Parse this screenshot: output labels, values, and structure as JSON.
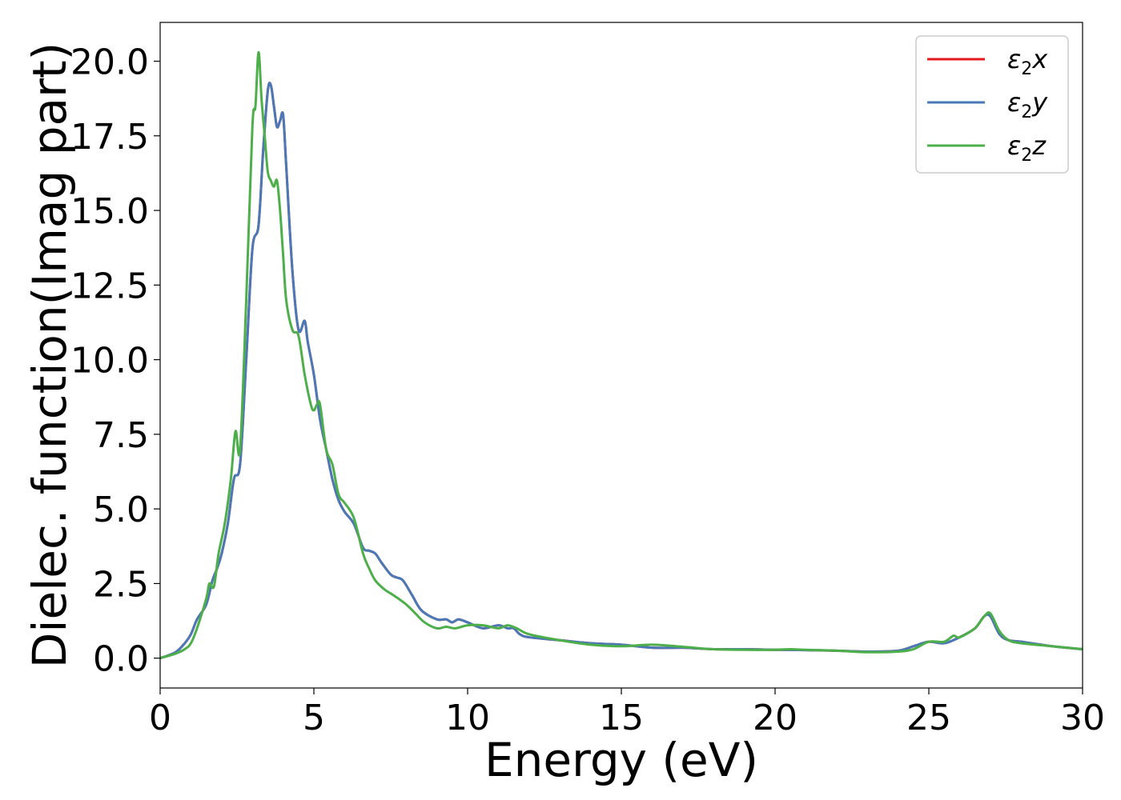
{
  "chart_data": {
    "type": "line",
    "title": "",
    "xlabel": "Energy (eV)",
    "ylabel": "Dielec. function(Imag part)",
    "xlim": [
      0,
      30
    ],
    "ylim": [
      -1.0,
      21.3
    ],
    "xticks": [
      0,
      5,
      10,
      15,
      20,
      25,
      30
    ],
    "xtick_labels": [
      "0",
      "5",
      "10",
      "15",
      "20",
      "25",
      "30"
    ],
    "yticks": [
      0,
      2.5,
      5,
      7.5,
      10,
      12.5,
      15,
      17.5,
      20
    ],
    "ytick_labels": [
      "0.0",
      "2.5",
      "5.0",
      "7.5",
      "10.0",
      "12.5",
      "15.0",
      "17.5",
      "20.0"
    ],
    "grid": false,
    "legend_position": "top-right",
    "series": [
      {
        "name": "ε₂x",
        "legend_base": "ε",
        "legend_sub": "2",
        "legend_suffix": "x",
        "color": "#e41a1c",
        "x": [
          0,
          0.5,
          0.8,
          1.0,
          1.2,
          1.5,
          1.7,
          1.85,
          2.0,
          2.2,
          2.4,
          2.6,
          2.8,
          3.0,
          3.2,
          3.35,
          3.5,
          3.6,
          3.7,
          3.8,
          3.9,
          4.0,
          4.1,
          4.3,
          4.5,
          4.7,
          4.8,
          5.0,
          5.2,
          5.4,
          5.6,
          5.8,
          6.0,
          6.3,
          6.6,
          6.8,
          7.0,
          7.2,
          7.5,
          7.7,
          7.9,
          8.2,
          8.5,
          9.0,
          9.3,
          9.5,
          9.7,
          10.0,
          10.5,
          11.0,
          11.3,
          11.5,
          11.7,
          12.0,
          13.0,
          14.0,
          15.0,
          16.0,
          17.0,
          18.0,
          19.0,
          20.0,
          21.0,
          22.0,
          23.0,
          24.0,
          24.5,
          25.0,
          25.5,
          26.0,
          26.5,
          26.8,
          27.0,
          27.3,
          27.6,
          28.0,
          29.0,
          30.0
        ],
        "y": [
          0,
          0.2,
          0.5,
          0.8,
          1.3,
          1.8,
          2.6,
          3.0,
          3.5,
          4.5,
          6.0,
          6.5,
          10.0,
          13.7,
          14.5,
          17.0,
          19.0,
          19.2,
          18.5,
          17.8,
          18.0,
          18.2,
          16.5,
          13.0,
          11.0,
          11.3,
          10.6,
          9.5,
          8.0,
          7.0,
          6.0,
          5.3,
          4.9,
          4.5,
          3.7,
          3.6,
          3.5,
          3.2,
          2.8,
          2.7,
          2.6,
          2.1,
          1.6,
          1.3,
          1.3,
          1.2,
          1.3,
          1.2,
          1.0,
          1.1,
          1.0,
          1.0,
          0.8,
          0.7,
          0.6,
          0.5,
          0.45,
          0.35,
          0.35,
          0.3,
          0.3,
          0.28,
          0.27,
          0.25,
          0.22,
          0.25,
          0.4,
          0.55,
          0.5,
          0.7,
          1.0,
          1.4,
          1.4,
          0.8,
          0.6,
          0.55,
          0.4,
          0.3
        ]
      },
      {
        "name": "ε₂y",
        "legend_base": "ε",
        "legend_sub": "2",
        "legend_suffix": "y",
        "color": "#4a79b8",
        "x": [
          0,
          0.5,
          0.8,
          1.0,
          1.2,
          1.5,
          1.7,
          1.85,
          2.0,
          2.2,
          2.4,
          2.6,
          2.8,
          3.0,
          3.2,
          3.35,
          3.5,
          3.6,
          3.7,
          3.8,
          3.9,
          4.0,
          4.1,
          4.3,
          4.5,
          4.7,
          4.8,
          5.0,
          5.2,
          5.4,
          5.6,
          5.8,
          6.0,
          6.3,
          6.6,
          6.8,
          7.0,
          7.2,
          7.5,
          7.7,
          7.9,
          8.2,
          8.5,
          9.0,
          9.3,
          9.5,
          9.7,
          10.0,
          10.5,
          11.0,
          11.3,
          11.5,
          11.7,
          12.0,
          13.0,
          14.0,
          15.0,
          16.0,
          17.0,
          18.0,
          19.0,
          20.0,
          21.0,
          22.0,
          23.0,
          24.0,
          24.5,
          25.0,
          25.5,
          26.0,
          26.5,
          26.8,
          27.0,
          27.3,
          27.6,
          28.0,
          29.0,
          30.0
        ],
        "y": [
          0,
          0.2,
          0.5,
          0.8,
          1.3,
          1.8,
          2.6,
          3.0,
          3.5,
          4.5,
          6.0,
          6.5,
          10.0,
          13.7,
          14.5,
          17.0,
          19.0,
          19.2,
          18.5,
          17.8,
          18.0,
          18.2,
          16.5,
          13.0,
          11.0,
          11.3,
          10.6,
          9.5,
          8.0,
          7.0,
          6.0,
          5.3,
          4.9,
          4.5,
          3.7,
          3.6,
          3.5,
          3.2,
          2.8,
          2.7,
          2.6,
          2.1,
          1.6,
          1.3,
          1.3,
          1.2,
          1.3,
          1.2,
          1.0,
          1.1,
          1.0,
          1.0,
          0.8,
          0.7,
          0.6,
          0.5,
          0.45,
          0.35,
          0.35,
          0.3,
          0.3,
          0.28,
          0.27,
          0.25,
          0.22,
          0.25,
          0.4,
          0.55,
          0.5,
          0.7,
          1.0,
          1.4,
          1.4,
          0.8,
          0.6,
          0.55,
          0.4,
          0.3
        ]
      },
      {
        "name": "ε₂z",
        "legend_base": "ε",
        "legend_sub": "2",
        "legend_suffix": "z",
        "color": "#4daf4a",
        "x": [
          0,
          0.5,
          0.8,
          1.0,
          1.2,
          1.5,
          1.6,
          1.75,
          1.9,
          2.1,
          2.3,
          2.45,
          2.6,
          2.8,
          3.0,
          3.1,
          3.2,
          3.3,
          3.4,
          3.5,
          3.6,
          3.7,
          3.8,
          3.9,
          4.0,
          4.1,
          4.3,
          4.5,
          4.7,
          4.9,
          5.0,
          5.1,
          5.2,
          5.4,
          5.6,
          5.8,
          6.0,
          6.3,
          6.6,
          6.8,
          7.0,
          7.3,
          7.6,
          8.0,
          8.3,
          8.6,
          9.0,
          9.3,
          9.6,
          10.0,
          10.5,
          11.0,
          11.3,
          11.6,
          12.0,
          13.0,
          14.0,
          15.0,
          16.0,
          17.0,
          18.0,
          19.0,
          20.0,
          20.5,
          21.0,
          22.0,
          23.0,
          24.0,
          24.5,
          25.0,
          25.5,
          25.8,
          26.0,
          26.5,
          26.8,
          27.0,
          27.3,
          27.6,
          28.0,
          29.0,
          30.0
        ],
        "y": [
          0,
          0.15,
          0.3,
          0.5,
          1.0,
          2.0,
          2.5,
          2.4,
          3.5,
          4.5,
          6.0,
          7.6,
          7.0,
          12.0,
          17.8,
          18.5,
          20.3,
          18.7,
          17.5,
          16.3,
          16.0,
          15.8,
          16.0,
          15.0,
          13.5,
          12.0,
          11.0,
          10.8,
          9.5,
          8.5,
          8.3,
          8.5,
          8.5,
          7.0,
          6.5,
          5.5,
          5.2,
          4.7,
          3.5,
          3.0,
          2.6,
          2.3,
          2.1,
          1.8,
          1.5,
          1.2,
          1.0,
          1.05,
          1.0,
          1.1,
          1.1,
          1.0,
          1.1,
          1.0,
          0.8,
          0.6,
          0.45,
          0.4,
          0.45,
          0.38,
          0.3,
          0.28,
          0.28,
          0.3,
          0.28,
          0.25,
          0.2,
          0.22,
          0.3,
          0.55,
          0.55,
          0.75,
          0.7,
          1.0,
          1.4,
          1.5,
          0.9,
          0.6,
          0.5,
          0.4,
          0.3
        ]
      }
    ]
  }
}
